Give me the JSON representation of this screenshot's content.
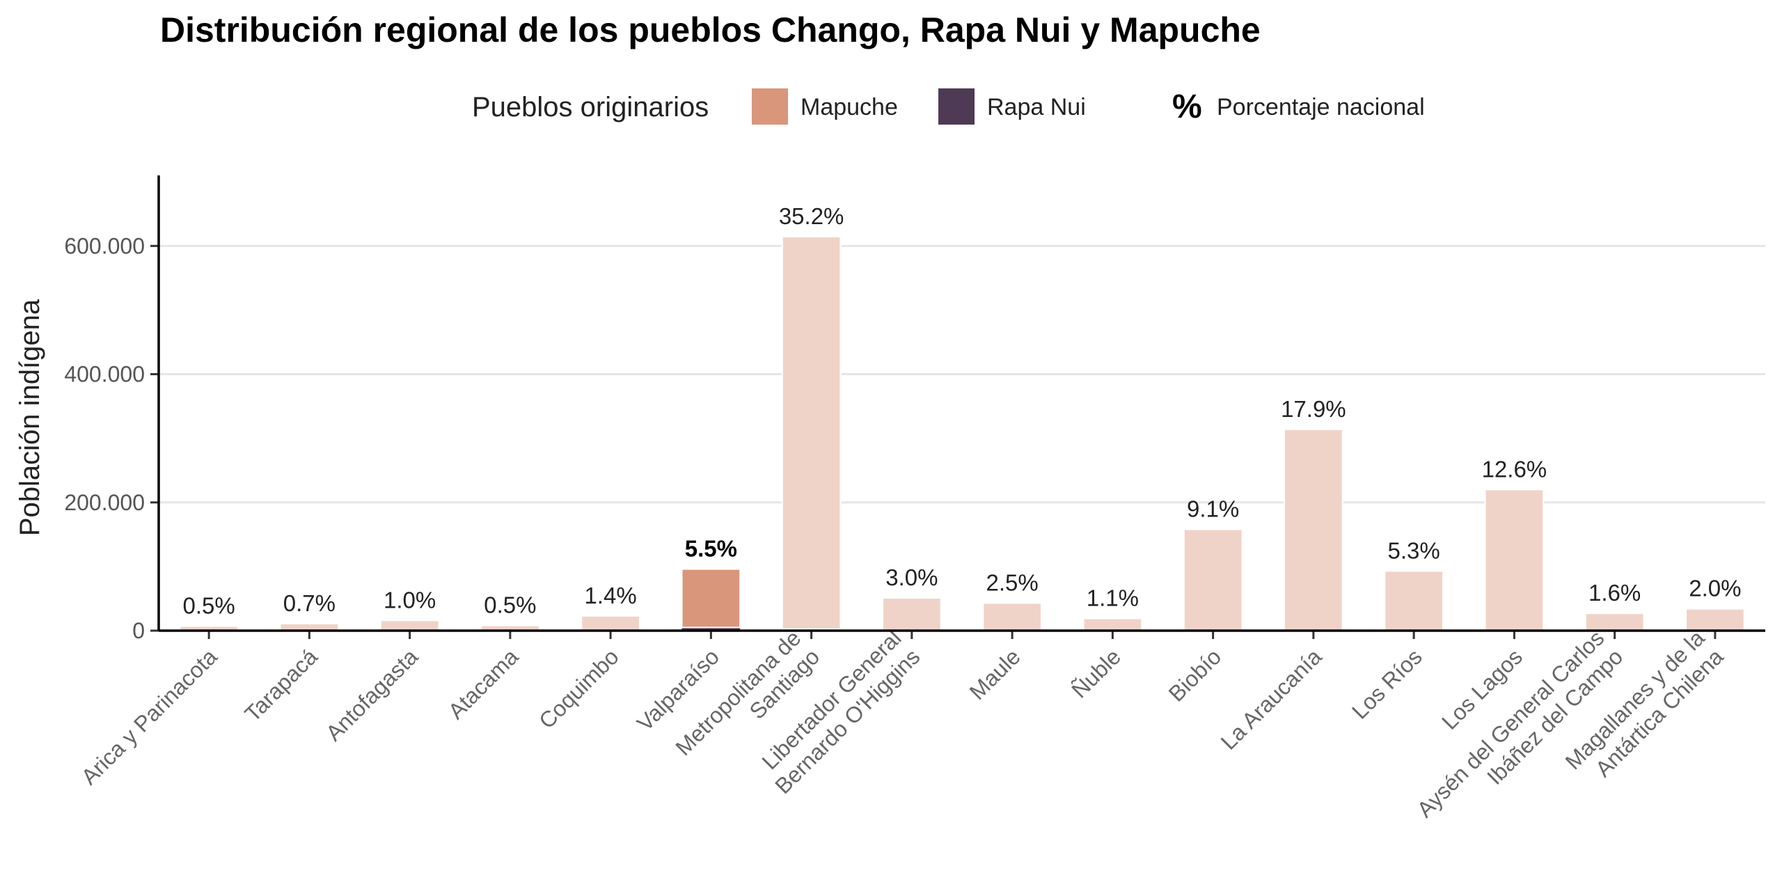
{
  "chart_data": {
    "type": "bar",
    "title": "Distribución regional de los pueblos Chango, Rapa Nui y Mapuche",
    "ylabel": "Población indígena",
    "xlabel": "",
    "ylim": [
      0,
      710000
    ],
    "yticks": [
      0,
      200000,
      400000,
      600000
    ],
    "ytick_labels": [
      "0",
      "200.000",
      "400.000",
      "600.000"
    ],
    "grid": true,
    "legend": {
      "position": "top",
      "title": "Pueblos originarios",
      "items": [
        {
          "label": "Mapuche",
          "color": "#D9967A"
        },
        {
          "label": "Rapa Nui",
          "color": "#4F3A56"
        }
      ],
      "pct_symbol": "%",
      "pct_label": "Porcentaje nacional"
    },
    "colors": {
      "mapuche": "#D9967A",
      "mapuche_faded": "#F0D3C8",
      "rapa_nui": "#4F3A56"
    },
    "highlight_index": 5,
    "categories": [
      [
        "Arica y Parinacota"
      ],
      [
        "Tarapacá"
      ],
      [
        "Antofagasta"
      ],
      [
        "Atacama"
      ],
      [
        "Coquimbo"
      ],
      [
        "Valparaíso"
      ],
      [
        "Metropolitana de",
        "Santiago"
      ],
      [
        "Libertador General",
        "Bernardo O'Higgins"
      ],
      [
        "Maule"
      ],
      [
        "Ñuble"
      ],
      [
        "Biobío"
      ],
      [
        "La Araucanía"
      ],
      [
        "Los Ríos"
      ],
      [
        "Los Lagos"
      ],
      [
        "Aysén del General Carlos",
        "Ibáñez del Campo"
      ],
      [
        "Magallanes y de la",
        "Antártica Chilena"
      ]
    ],
    "series": [
      {
        "name": "Mapuche",
        "values": [
          7000,
          11000,
          16000,
          8000,
          23000,
          91000,
          612000,
          51000,
          43000,
          19000,
          158000,
          314000,
          93000,
          220000,
          27000,
          34000
        ]
      },
      {
        "name": "Rapa Nui",
        "values": [
          0,
          0,
          0,
          0,
          0,
          5000,
          2500,
          0,
          0,
          0,
          0,
          0,
          0,
          0,
          0,
          0
        ]
      }
    ],
    "pct_labels": [
      "0.5%",
      "0.7%",
      "1.0%",
      "0.5%",
      "1.4%",
      "5.5%",
      "35.2%",
      "3.0%",
      "2.5%",
      "1.1%",
      "9.1%",
      "17.9%",
      "5.3%",
      "12.6%",
      "1.6%",
      "2.0%"
    ]
  }
}
